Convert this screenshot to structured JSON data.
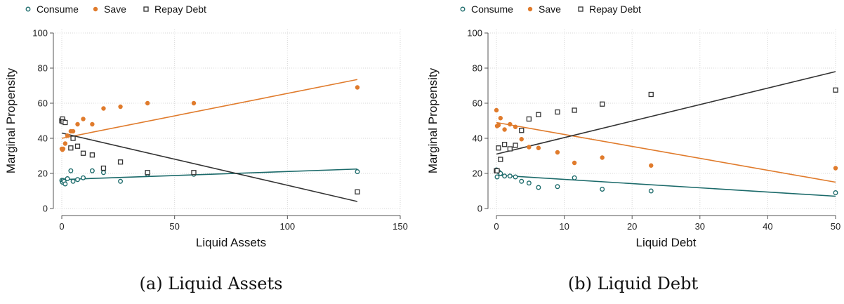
{
  "colors": {
    "consume": "#1b6a6a",
    "save": "#e07b2c",
    "repay": "#333333",
    "grid": "#d7d7d7",
    "axis": "#555555"
  },
  "captions": [
    "(a) Liquid Assets",
    "(b) Liquid Debt"
  ],
  "chart_data": [
    {
      "type": "scatter",
      "title": "",
      "xlabel": "Liquid Assets",
      "ylabel": "Marginal Propensity",
      "xlim": [
        0,
        150
      ],
      "ylim": [
        0,
        100
      ],
      "xticks": [
        0,
        50,
        100,
        150
      ],
      "yticks": [
        0,
        20,
        40,
        60,
        80,
        100
      ],
      "grid": true,
      "legend_position": "top-left",
      "series": [
        {
          "name": "Consume",
          "marker": "hollow-circle",
          "x": [
            0,
            0.3,
            0.6,
            1,
            1.5,
            2.5,
            4,
            5,
            7,
            9.5,
            13.5,
            18.5,
            26,
            38,
            58.5,
            131
          ],
          "y": [
            16,
            15,
            16,
            15.5,
            14,
            17,
            21.5,
            15.5,
            16.5,
            17.5,
            21.5,
            20.5,
            15.5,
            19.5,
            19.5,
            21
          ],
          "fit": [
            [
              0,
              16.5
            ],
            [
              131,
              22.5
            ]
          ]
        },
        {
          "name": "Save",
          "marker": "filled-circle",
          "x": [
            0,
            0.3,
            0.6,
            1.5,
            2.5,
            4,
            5,
            7,
            9.5,
            13.5,
            18.5,
            26,
            38,
            58.5,
            131
          ],
          "y": [
            34,
            33.5,
            34,
            37,
            41.5,
            44,
            44,
            48,
            51,
            48,
            57,
            58,
            60,
            60,
            69
          ],
          "fit": [
            [
              0,
              40
            ],
            [
              131,
              73.5
            ]
          ]
        },
        {
          "name": "Repay Debt",
          "marker": "hollow-square",
          "x": [
            0,
            0.3,
            0.6,
            1.5,
            4,
            5,
            7,
            9.5,
            13.5,
            18.5,
            26,
            38,
            58.5,
            131
          ],
          "y": [
            50,
            51,
            49.5,
            49,
            34.5,
            40,
            35.5,
            31.5,
            30.5,
            23,
            26.5,
            20.5,
            20.5,
            9.5
          ],
          "fit": [
            [
              0,
              43
            ],
            [
              131,
              4
            ]
          ]
        }
      ]
    },
    {
      "type": "scatter",
      "title": "",
      "xlabel": "Liquid Debt",
      "ylabel": "Marginal Propensity",
      "xlim": [
        0,
        50
      ],
      "ylim": [
        0,
        100
      ],
      "xticks": [
        0,
        10,
        20,
        30,
        40,
        50
      ],
      "yticks": [
        0,
        20,
        40,
        60,
        80,
        100
      ],
      "grid": true,
      "legend_position": "top-left",
      "series": [
        {
          "name": "Consume",
          "marker": "hollow-circle",
          "x": [
            0,
            0.1,
            0.3,
            0.6,
            1.2,
            2,
            2.8,
            3.7,
            4.8,
            6.2,
            9,
            11.5,
            15.6,
            22.8,
            50
          ],
          "y": [
            22,
            18,
            21,
            20,
            18.5,
            18.5,
            18,
            15.5,
            14.5,
            12,
            12.5,
            17.5,
            11,
            10,
            9
          ],
          "fit": [
            [
              0,
              19
            ],
            [
              50,
              7
            ]
          ]
        },
        {
          "name": "Save",
          "marker": "filled-circle",
          "x": [
            0,
            0.1,
            0.3,
            0.6,
            1.2,
            2,
            2.8,
            3.7,
            4.8,
            6.2,
            9,
            11.5,
            15.6,
            22.8,
            50
          ],
          "y": [
            56,
            47,
            47.5,
            51.5,
            45,
            48,
            46.5,
            39.5,
            35,
            34.5,
            32,
            26,
            29,
            24.5,
            23
          ],
          "fit": [
            [
              0,
              49
            ],
            [
              50,
              15
            ]
          ]
        },
        {
          "name": "Repay Debt",
          "marker": "hollow-square",
          "x": [
            0,
            0.1,
            0.3,
            0.6,
            1.2,
            2,
            2.8,
            3.7,
            4.8,
            6.2,
            9,
            11.5,
            15.6,
            22.8,
            50
          ],
          "y": [
            21.5,
            21.5,
            34.5,
            28,
            36.5,
            34,
            36,
            44.5,
            51,
            53.5,
            55,
            56,
            59.5,
            65,
            67.5
          ],
          "fit": [
            [
              0,
              31
            ],
            [
              50,
              78
            ]
          ]
        }
      ]
    }
  ]
}
